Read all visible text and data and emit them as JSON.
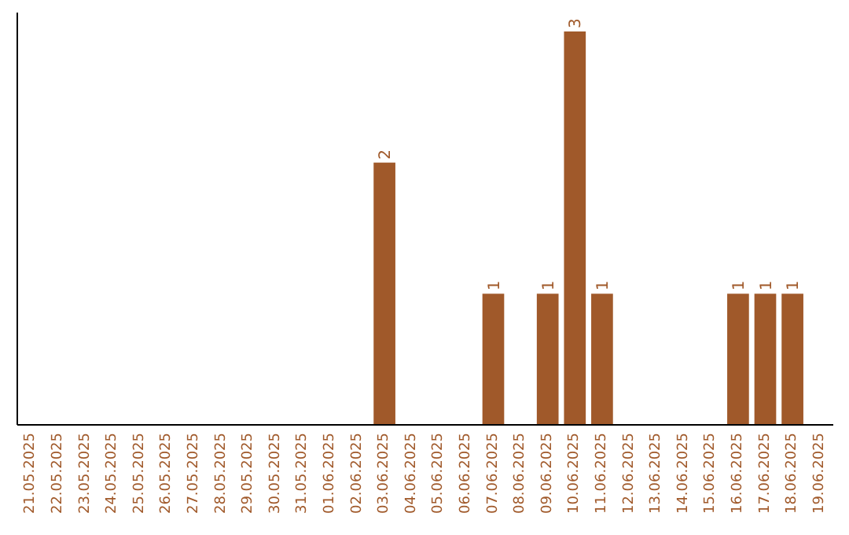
{
  "chart_data": {
    "type": "bar",
    "categories": [
      "21.05.2025",
      "22.05.2025",
      "23.05.2025",
      "24.05.2025",
      "25.05.2025",
      "26.05.2025",
      "27.05.2025",
      "28.05.2025",
      "29.05.2025",
      "30.05.2025",
      "31.05.2025",
      "01.06.2025",
      "02.06.2025",
      "03.06.2025",
      "04.06.2025",
      "05.06.2025",
      "06.06.2025",
      "07.06.2025",
      "08.06.2025",
      "09.06.2025",
      "10.06.2025",
      "11.06.2025",
      "12.06.2025",
      "13.06.2025",
      "14.06.2025",
      "15.06.2025",
      "16.06.2025",
      "17.06.2025",
      "18.06.2025",
      "19.06.2025"
    ],
    "values": [
      null,
      null,
      null,
      null,
      null,
      null,
      null,
      null,
      null,
      null,
      null,
      null,
      null,
      2,
      null,
      null,
      null,
      1,
      null,
      1,
      3,
      1,
      null,
      null,
      null,
      null,
      1,
      1,
      1,
      null
    ],
    "value_labels": [
      null,
      null,
      null,
      null,
      null,
      null,
      null,
      null,
      null,
      null,
      null,
      null,
      null,
      "2",
      null,
      null,
      null,
      "1",
      null,
      "1",
      "3",
      "1",
      null,
      null,
      null,
      null,
      "1",
      "1",
      "1",
      null
    ],
    "color": "#a0592a"
  }
}
